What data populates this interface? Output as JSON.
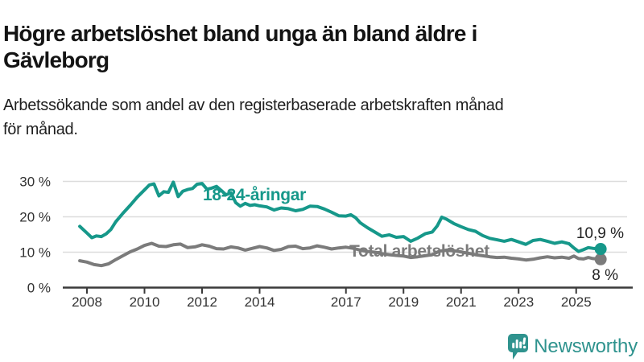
{
  "header": {
    "title_lines": [
      "Högre arbetslöshet bland unga än bland äldre i",
      "Gävleborg"
    ],
    "subtitle_lines": [
      "Arbetssökande som andel av den registerbaserade arbetskraften månad",
      "för månad."
    ]
  },
  "chart_data": {
    "type": "line",
    "unit": "%",
    "grid": true,
    "x_domain": [
      2007.75,
      2025.85
    ],
    "x_ticks": [
      2008,
      2010,
      2012,
      2014,
      2017,
      2019,
      2021,
      2023,
      2025
    ],
    "y_ticks": [
      0,
      10,
      20,
      30
    ],
    "y_tick_suffix": " %",
    "ylim": [
      0,
      32
    ],
    "series": [
      {
        "name": "18-24-åringar",
        "color": "#16988a",
        "end_label": "10,9 %",
        "end_value": 10.9,
        "points": [
          [
            2007.75,
            17.3
          ],
          [
            2008.0,
            15.4
          ],
          [
            2008.17,
            14.1
          ],
          [
            2008.33,
            14.6
          ],
          [
            2008.5,
            14.4
          ],
          [
            2008.67,
            15.2
          ],
          [
            2008.83,
            16.4
          ],
          [
            2009.0,
            18.6
          ],
          [
            2009.25,
            21.0
          ],
          [
            2009.5,
            23.2
          ],
          [
            2009.75,
            25.6
          ],
          [
            2010.0,
            27.6
          ],
          [
            2010.17,
            29.0
          ],
          [
            2010.33,
            29.3
          ],
          [
            2010.5,
            25.9
          ],
          [
            2010.67,
            27.1
          ],
          [
            2010.83,
            26.9
          ],
          [
            2011.0,
            29.8
          ],
          [
            2011.17,
            25.7
          ],
          [
            2011.33,
            27.2
          ],
          [
            2011.5,
            27.7
          ],
          [
            2011.67,
            28.0
          ],
          [
            2011.83,
            29.2
          ],
          [
            2012.0,
            29.4
          ],
          [
            2012.17,
            27.8
          ],
          [
            2012.33,
            28.1
          ],
          [
            2012.5,
            28.6
          ],
          [
            2012.67,
            27.4
          ],
          [
            2012.83,
            26.2
          ],
          [
            2013.0,
            26.8
          ],
          [
            2013.17,
            24.0
          ],
          [
            2013.33,
            23.0
          ],
          [
            2013.5,
            23.8
          ],
          [
            2013.67,
            23.2
          ],
          [
            2013.83,
            23.4
          ],
          [
            2014.0,
            23.1
          ],
          [
            2014.25,
            22.8
          ],
          [
            2014.5,
            21.9
          ],
          [
            2014.75,
            22.5
          ],
          [
            2015.0,
            22.3
          ],
          [
            2015.25,
            21.7
          ],
          [
            2015.5,
            22.1
          ],
          [
            2015.75,
            23.0
          ],
          [
            2016.0,
            22.9
          ],
          [
            2016.25,
            22.2
          ],
          [
            2016.5,
            21.3
          ],
          [
            2016.75,
            20.3
          ],
          [
            2017.0,
            20.2
          ],
          [
            2017.17,
            20.6
          ],
          [
            2017.33,
            19.8
          ],
          [
            2017.5,
            18.3
          ],
          [
            2017.75,
            16.9
          ],
          [
            2018.0,
            15.7
          ],
          [
            2018.25,
            14.5
          ],
          [
            2018.5,
            14.9
          ],
          [
            2018.75,
            14.2
          ],
          [
            2019.0,
            14.4
          ],
          [
            2019.25,
            13.1
          ],
          [
            2019.5,
            14.0
          ],
          [
            2019.75,
            15.2
          ],
          [
            2020.0,
            15.7
          ],
          [
            2020.17,
            17.4
          ],
          [
            2020.33,
            19.9
          ],
          [
            2020.5,
            19.3
          ],
          [
            2020.75,
            18.1
          ],
          [
            2021.0,
            17.2
          ],
          [
            2021.25,
            16.4
          ],
          [
            2021.5,
            15.9
          ],
          [
            2021.75,
            14.7
          ],
          [
            2022.0,
            13.9
          ],
          [
            2022.25,
            13.5
          ],
          [
            2022.5,
            13.1
          ],
          [
            2022.75,
            13.6
          ],
          [
            2023.0,
            12.9
          ],
          [
            2023.25,
            12.2
          ],
          [
            2023.5,
            13.3
          ],
          [
            2023.75,
            13.6
          ],
          [
            2024.0,
            13.1
          ],
          [
            2024.25,
            12.5
          ],
          [
            2024.5,
            12.9
          ],
          [
            2024.75,
            12.4
          ],
          [
            2024.92,
            11.2
          ],
          [
            2025.08,
            10.2
          ],
          [
            2025.25,
            10.7
          ],
          [
            2025.42,
            11.3
          ],
          [
            2025.58,
            11.1
          ],
          [
            2025.85,
            10.9
          ]
        ]
      },
      {
        "name": "Total arbetslöshet",
        "color": "#7b7b7b",
        "end_label": "8 %",
        "end_value": 8.0,
        "points": [
          [
            2007.75,
            7.6
          ],
          [
            2008.0,
            7.2
          ],
          [
            2008.25,
            6.5
          ],
          [
            2008.5,
            6.2
          ],
          [
            2008.75,
            6.7
          ],
          [
            2009.0,
            7.9
          ],
          [
            2009.25,
            9.0
          ],
          [
            2009.5,
            10.1
          ],
          [
            2009.75,
            10.9
          ],
          [
            2010.0,
            11.9
          ],
          [
            2010.25,
            12.5
          ],
          [
            2010.5,
            11.7
          ],
          [
            2010.75,
            11.6
          ],
          [
            2011.0,
            12.1
          ],
          [
            2011.25,
            12.3
          ],
          [
            2011.5,
            11.3
          ],
          [
            2011.75,
            11.5
          ],
          [
            2012.0,
            12.1
          ],
          [
            2012.25,
            11.7
          ],
          [
            2012.5,
            11.0
          ],
          [
            2012.75,
            10.9
          ],
          [
            2013.0,
            11.5
          ],
          [
            2013.25,
            11.2
          ],
          [
            2013.5,
            10.6
          ],
          [
            2013.75,
            11.1
          ],
          [
            2014.0,
            11.6
          ],
          [
            2014.25,
            11.2
          ],
          [
            2014.5,
            10.5
          ],
          [
            2014.75,
            10.8
          ],
          [
            2015.0,
            11.6
          ],
          [
            2015.25,
            11.7
          ],
          [
            2015.5,
            11.0
          ],
          [
            2015.75,
            11.2
          ],
          [
            2016.0,
            11.8
          ],
          [
            2016.25,
            11.4
          ],
          [
            2016.5,
            10.9
          ],
          [
            2016.75,
            11.2
          ],
          [
            2017.0,
            11.4
          ],
          [
            2017.25,
            11.1
          ],
          [
            2017.5,
            10.6
          ],
          [
            2017.75,
            10.2
          ],
          [
            2018.0,
            10.0
          ],
          [
            2018.25,
            9.6
          ],
          [
            2018.5,
            9.3
          ],
          [
            2018.75,
            9.1
          ],
          [
            2019.0,
            8.9
          ],
          [
            2019.25,
            8.5
          ],
          [
            2019.5,
            8.7
          ],
          [
            2019.75,
            9.0
          ],
          [
            2020.0,
            9.3
          ],
          [
            2020.25,
            10.3
          ],
          [
            2020.5,
            10.6
          ],
          [
            2020.75,
            10.4
          ],
          [
            2021.0,
            10.1
          ],
          [
            2021.25,
            9.7
          ],
          [
            2021.5,
            9.3
          ],
          [
            2021.75,
            9.0
          ],
          [
            2022.0,
            8.7
          ],
          [
            2022.25,
            8.5
          ],
          [
            2022.5,
            8.6
          ],
          [
            2022.75,
            8.3
          ],
          [
            2023.0,
            8.1
          ],
          [
            2023.25,
            7.8
          ],
          [
            2023.5,
            8.0
          ],
          [
            2023.75,
            8.4
          ],
          [
            2024.0,
            8.7
          ],
          [
            2024.25,
            8.4
          ],
          [
            2024.5,
            8.6
          ],
          [
            2024.75,
            8.3
          ],
          [
            2024.92,
            8.9
          ],
          [
            2025.08,
            8.2
          ],
          [
            2025.25,
            8.1
          ],
          [
            2025.42,
            8.5
          ],
          [
            2025.58,
            8.2
          ],
          [
            2025.85,
            8.0
          ]
        ]
      }
    ]
  },
  "footer": {
    "brand": "Newsworthy"
  },
  "colors": {
    "accent_teal": "#16988a",
    "line_gray": "#7b7b7b",
    "gridline": "#dcdcdc",
    "axis": "#3a3a3a",
    "tick_label": "#333333",
    "logo_teal": "#2f938e"
  }
}
